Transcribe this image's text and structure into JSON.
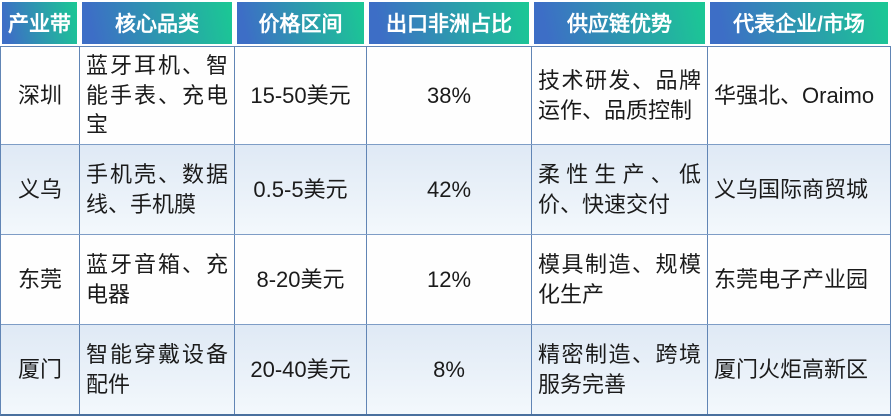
{
  "chart_data": {
    "type": "table",
    "columns": [
      "产业带",
      "核心品类",
      "价格区间",
      "出口非洲占比",
      "供应链优势",
      "代表企业/市场"
    ],
    "rows": [
      [
        "深圳",
        "蓝牙耳机、智能手表、充电宝",
        "15-50美元",
        "38%",
        "技术研发、品牌运作、品质控制",
        "华强北、Oraimo"
      ],
      [
        "义乌",
        "手机壳、数据线、手机膜",
        "0.5-5美元",
        "42%",
        "柔性生产、低价、快速交付",
        "义乌国际商贸城"
      ],
      [
        "东莞",
        "蓝牙音箱、充电器",
        "8-20美元",
        "12%",
        "模具制造、规模化生产",
        "东莞电子产业园"
      ],
      [
        "厦门",
        "智能穿戴设备配件",
        "20-40美元",
        "8%",
        "精密制造、跨境服务完善",
        "厦门火炬高新区"
      ]
    ],
    "export_africa_share_percent": [
      38,
      42,
      12,
      8
    ]
  },
  "table": {
    "headers": [
      "产业带",
      "核心品类",
      "价格区间",
      "出口非洲占比",
      "供应链优势",
      "代表企业/市场"
    ],
    "rows": [
      {
        "region": "深圳",
        "categories": "蓝牙耳机、智能手表、充电宝",
        "price": "15-50美元",
        "africa_share": "38%",
        "advantages": "技术研发、品牌运作、品质控制",
        "representative": "华强北、Oraimo"
      },
      {
        "region": "义乌",
        "categories": "手机壳、数据线、手机膜",
        "price": "0.5-5美元",
        "africa_share": "42%",
        "advantages": "柔性生产、低价、快速交付",
        "representative": "义乌国际商贸城"
      },
      {
        "region": "东莞",
        "categories": "蓝牙音箱、充电器",
        "price": "8-20美元",
        "africa_share": "12%",
        "advantages": "模具制造、规模化生产",
        "representative": "东莞电子产业园"
      },
      {
        "region": "厦门",
        "categories": "智能穿戴设备配件",
        "price": "20-40美元",
        "africa_share": "8%",
        "advantages": "精密制造、跨境服务完善",
        "representative": "厦门火炬高新区"
      }
    ]
  },
  "colors": {
    "header_gradient_start": "#3d6ec6",
    "header_gradient_end": "#1bc795",
    "header_text": "#ffffff",
    "banded_row_top": "#dfe9f5",
    "banded_row_bottom": "#f3f8fc",
    "plain_row": "#fefefe",
    "grid_border": "#6185b5",
    "outer_bottom_border": "#49709e",
    "body_text": "#1b1b1b"
  }
}
